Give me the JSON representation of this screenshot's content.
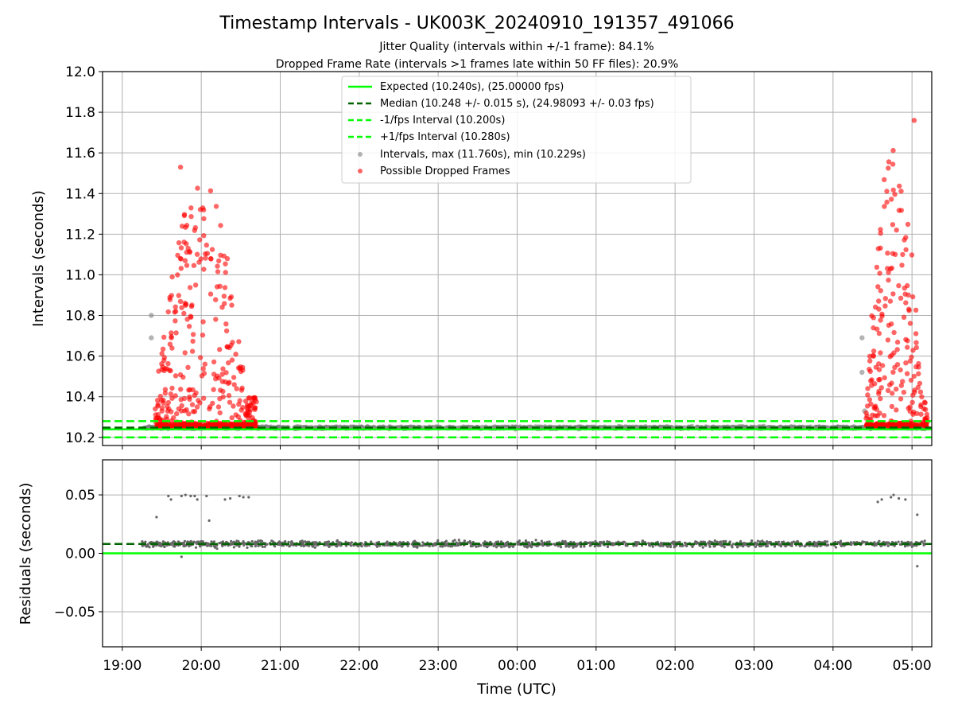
{
  "title": "Timestamp Intervals - UK003K_20240910_191357_491066",
  "subtitle_1": "Jitter Quality (intervals within +/-1 frame): 84.1%",
  "subtitle_2": "Dropped Frame Rate (intervals >1 frames late within 50 FF files): 20.9%",
  "colors": {
    "expected": "#00ff00",
    "median": "#006400",
    "interval_band": "#00ff00",
    "interval_points": "#808080",
    "dropped_points": "#ff0000",
    "residual_points": "#666666",
    "grid": "#b0b0b0"
  },
  "chart_data": [
    {
      "type": "scatter",
      "panel": "top",
      "ylabel": "Intervals (seconds)",
      "xlabel": "",
      "xlim": [
        "18:45",
        "05:15"
      ],
      "ylim": [
        10.16,
        12.0
      ],
      "grid": true,
      "legend_placement": "upper center",
      "x_ticks": [
        "19:00",
        "20:00",
        "21:00",
        "22:00",
        "23:00",
        "00:00",
        "01:00",
        "02:00",
        "03:00",
        "04:00",
        "05:00"
      ],
      "y_ticks": [
        "10.2",
        "10.4",
        "10.6",
        "10.8",
        "11.0",
        "11.2",
        "11.4",
        "11.6",
        "11.8",
        "12.0"
      ],
      "reference_lines": [
        {
          "label": "Expected (10.240s), (25.00000 fps)",
          "y": 10.24,
          "style": "solid"
        },
        {
          "label": "Median (10.248 +/- 0.015 s), (24.98093 +/- 0.03 fps)",
          "y": 10.248,
          "style": "dashed"
        },
        {
          "label": "-1/fps Interval (10.200s)",
          "y": 10.2,
          "style": "dashed"
        },
        {
          "label": "+1/fps Interval (10.280s)",
          "y": 10.28,
          "style": "dashed"
        }
      ],
      "series": [
        {
          "name": "Intervals, max (11.760s), min (10.229s)",
          "baseline": 10.248,
          "spread": 0.015,
          "time_range": [
            "19:15",
            "05:10"
          ]
        },
        {
          "name": "Possible Dropped Frames",
          "clusters": [
            {
              "start": "19:25",
              "end": "20:42",
              "min": 10.25,
              "max": 11.53
            },
            {
              "start": "04:25",
              "end": "05:12",
              "min": 10.25,
              "max": 11.76
            }
          ],
          "max": 11.76
        }
      ]
    },
    {
      "type": "scatter",
      "panel": "bottom",
      "ylabel": "Residuals (seconds)",
      "xlabel": "Time (UTC)",
      "xlim": [
        "18:45",
        "05:15"
      ],
      "ylim": [
        -0.08,
        0.08
      ],
      "grid": true,
      "x_ticks": [
        "19:00",
        "20:00",
        "21:00",
        "22:00",
        "23:00",
        "00:00",
        "01:00",
        "02:00",
        "03:00",
        "04:00",
        "05:00"
      ],
      "y_ticks": [
        "−0.05",
        "0.00",
        "0.05"
      ],
      "reference_lines": [
        {
          "y": 0.0,
          "style": "solid"
        },
        {
          "y": 0.008,
          "style": "dashed"
        }
      ],
      "series": [
        {
          "baseline": 0.008,
          "spread": 0.003,
          "outlier_level": 0.049,
          "time_range": [
            "19:15",
            "05:10"
          ]
        }
      ]
    }
  ]
}
